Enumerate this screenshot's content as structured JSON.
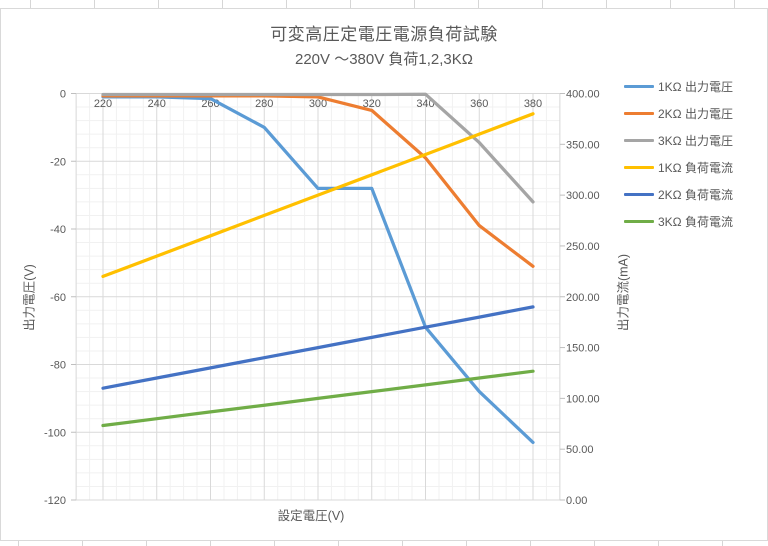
{
  "chart": {
    "title": "可変高圧定電圧電源負荷試験",
    "subtitle": "220V ～380V 負荷1,2,3KΩ",
    "x_axis_title": "設定電圧(V)",
    "left_axis_title": "出力電圧(V)",
    "right_axis_title": "出力電流(mA)"
  },
  "chart_data": {
    "type": "line",
    "title": "可変高圧定電圧電源負荷試験 220V ～380V 負荷1,2,3KΩ",
    "x": [
      220,
      240,
      260,
      280,
      300,
      320,
      340,
      360,
      380
    ],
    "x_tick_labels": [
      "220",
      "240",
      "260",
      "280",
      "300",
      "320",
      "340",
      "360",
      "380"
    ],
    "xlabel": "設定電圧(V)",
    "left_axis": {
      "label": "出力電圧(V)",
      "ticks": [
        "0",
        "-20",
        "-40",
        "-60",
        "-80",
        "-100",
        "-120"
      ],
      "range": [
        -120,
        0
      ]
    },
    "right_axis": {
      "label": "出力電流(mA)",
      "ticks": [
        "400.00",
        "350.00",
        "300.00",
        "250.00",
        "200.00",
        "150.00",
        "100.00",
        "50.00",
        "0.00"
      ],
      "range": [
        0,
        400
      ]
    },
    "series": [
      {
        "name": "1KΩ 出力電圧",
        "axis": "left",
        "color": "#5B9BD5",
        "values": [
          -1,
          -1,
          -1.5,
          -10,
          -28,
          -28,
          -69,
          -88,
          -103
        ]
      },
      {
        "name": "2KΩ 出力電圧",
        "axis": "left",
        "color": "#ED7D31",
        "values": [
          -0.7,
          -0.7,
          -0.7,
          -0.7,
          -1,
          -5,
          -19,
          -39,
          -51
        ]
      },
      {
        "name": "3KΩ 出力電圧",
        "axis": "left",
        "color": "#A5A5A5",
        "values": [
          -0.3,
          -0.3,
          -0.3,
          -0.3,
          -0.3,
          -0.3,
          -0.2,
          -14.5,
          -32
        ]
      },
      {
        "name": "1KΩ 負荷電流",
        "axis": "right",
        "color": "#FFC000",
        "values": [
          220,
          240,
          260,
          280,
          300,
          320,
          340,
          360,
          380
        ]
      },
      {
        "name": "2KΩ 負荷電流",
        "axis": "right",
        "color": "#4472C4",
        "values": [
          110,
          120,
          130,
          140,
          150,
          160,
          170,
          180,
          190
        ]
      },
      {
        "name": "3KΩ 負荷電流",
        "axis": "right",
        "color": "#70AD47",
        "values": [
          73.3,
          80,
          86.7,
          93.3,
          100,
          106.7,
          113.3,
          120,
          126.7
        ]
      }
    ],
    "legend_position": "right",
    "grid": true,
    "colors": {
      "text": "#595959",
      "gridline_major": "#d9d9d9",
      "gridline_minor": "#f1f1f1",
      "axis_line": "#bfbfbf"
    }
  }
}
